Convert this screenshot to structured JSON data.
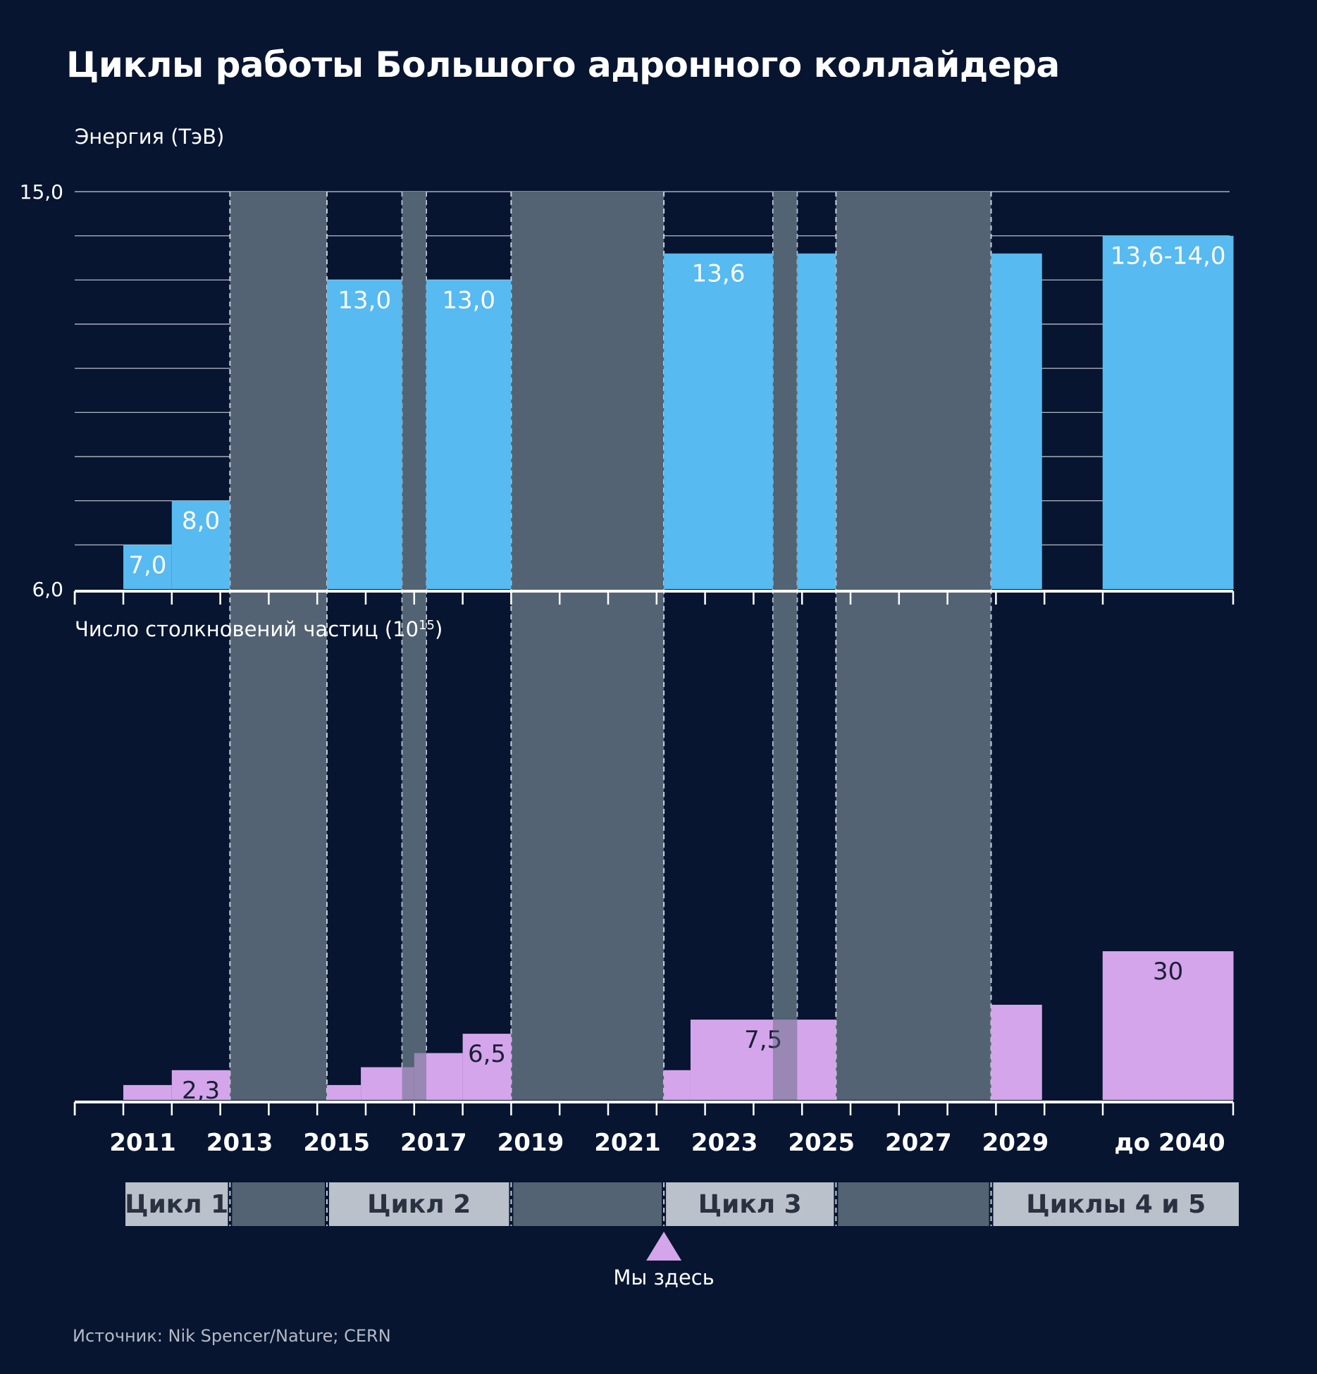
{
  "title": "Циклы работы Большого адронного коллайдера",
  "source": "Источник: Nik Spencer/Nature; CERN",
  "colors": {
    "background": "#071530",
    "energy_bar": "#57baf0",
    "collision_bar": "#d4a5ea",
    "shutdown": "#536373",
    "cycle_box": "#bac1cb",
    "marker": "#d4a5ea"
  },
  "chart_data": [
    {
      "type": "bar",
      "ylabel": "Энергия (ТэВ)",
      "ylim": [
        6.0,
        15.0
      ],
      "ytick_labels": [
        "6,0",
        "15,0"
      ],
      "grid": true,
      "series": [
        {
          "name": "",
          "values": [
            {
              "x": 2011,
              "x_end": 2012,
              "y": 7.0,
              "label": "7,0"
            },
            {
              "x": 2012,
              "x_end": 2013.2,
              "y": 8.0,
              "label": "8,0"
            },
            {
              "x": 2015.2,
              "x_end": 2016.75,
              "y": 13.0,
              "label": "13,0"
            },
            {
              "x": 2017.25,
              "x_end": 2019,
              "y": 13.0,
              "label": "13,0"
            },
            {
              "x": 2022.15,
              "x_end": 2024.4,
              "y": 13.6,
              "label": "13,6"
            },
            {
              "x": 2024.9,
              "x_end": 2025.7,
              "y": 13.6,
              "label": ""
            },
            {
              "x": 2028.9,
              "x_end": 2029.95,
              "y": 13.6,
              "label": ""
            },
            {
              "x": 2031.2,
              "x_end": 2033.9,
              "y": 14.0,
              "label": "13,6-14,0"
            }
          ]
        }
      ]
    },
    {
      "type": "bar",
      "ylabel": "Число столкновений частиц (10",
      "ylabel_sup": "15",
      "ylabel_tail": ")",
      "ylim": [
        0,
        30
      ],
      "series": [
        {
          "name": "",
          "values": [
            {
              "x": 2011,
              "x_end": 2012,
              "y": 1.0,
              "label": ""
            },
            {
              "x": 2012,
              "x_end": 2013.2,
              "y": 2.0,
              "label": "2,3"
            },
            {
              "x": 2015.2,
              "x_end": 2015.9,
              "y": 1.0,
              "label": ""
            },
            {
              "x": 2015.9,
              "x_end": 2017.0,
              "y": 2.2,
              "label": ""
            },
            {
              "x": 2017.0,
              "x_end": 2018.0,
              "y": 3.15,
              "label": ""
            },
            {
              "x": 2018.0,
              "x_end": 2019.0,
              "y": 4.45,
              "label": "6,5"
            },
            {
              "x": 2022.15,
              "x_end": 2022.7,
              "y": 2.0,
              "label": ""
            },
            {
              "x": 2022.7,
              "x_end": 2025.7,
              "y": 5.4,
              "label": "7,5"
            },
            {
              "x": 2028.9,
              "x_end": 2029.95,
              "y": 6.4,
              "label": ""
            },
            {
              "x": 2031.2,
              "x_end": 2033.9,
              "y": 10.0,
              "label": "30"
            }
          ]
        }
      ]
    }
  ],
  "shutdowns": [
    {
      "start": 2013.2,
      "end": 2015.2
    },
    {
      "start": 2016.75,
      "end": 2017.25
    },
    {
      "start": 2019.0,
      "end": 2022.15
    },
    {
      "start": 2024.4,
      "end": 2024.9
    },
    {
      "start": 2025.7,
      "end": 2028.9
    }
  ],
  "x_axis": {
    "tick_labels": [
      "2011",
      "2013",
      "2015",
      "2017",
      "2019",
      "2021",
      "2023",
      "2025",
      "2027",
      "2029",
      "до 2040"
    ]
  },
  "cycles": [
    {
      "label": "Цикл 1",
      "start": 2011,
      "end": 2013.2,
      "kind": "run"
    },
    {
      "label": "",
      "start": 2013.2,
      "end": 2015.2,
      "kind": "shutdown"
    },
    {
      "label": "Цикл 2",
      "start": 2015.2,
      "end": 2019.0,
      "kind": "run"
    },
    {
      "label": "",
      "start": 2019.0,
      "end": 2022.15,
      "kind": "shutdown"
    },
    {
      "label": "Цикл 3",
      "start": 2022.15,
      "end": 2025.7,
      "kind": "run"
    },
    {
      "label": "",
      "start": 2025.7,
      "end": 2028.9,
      "kind": "shutdown"
    },
    {
      "label": "Циклы 4 и 5",
      "start": 2028.9,
      "end": 2034.1,
      "kind": "run"
    }
  ],
  "marker": {
    "label": "Мы здесь",
    "x": 2022.15
  }
}
